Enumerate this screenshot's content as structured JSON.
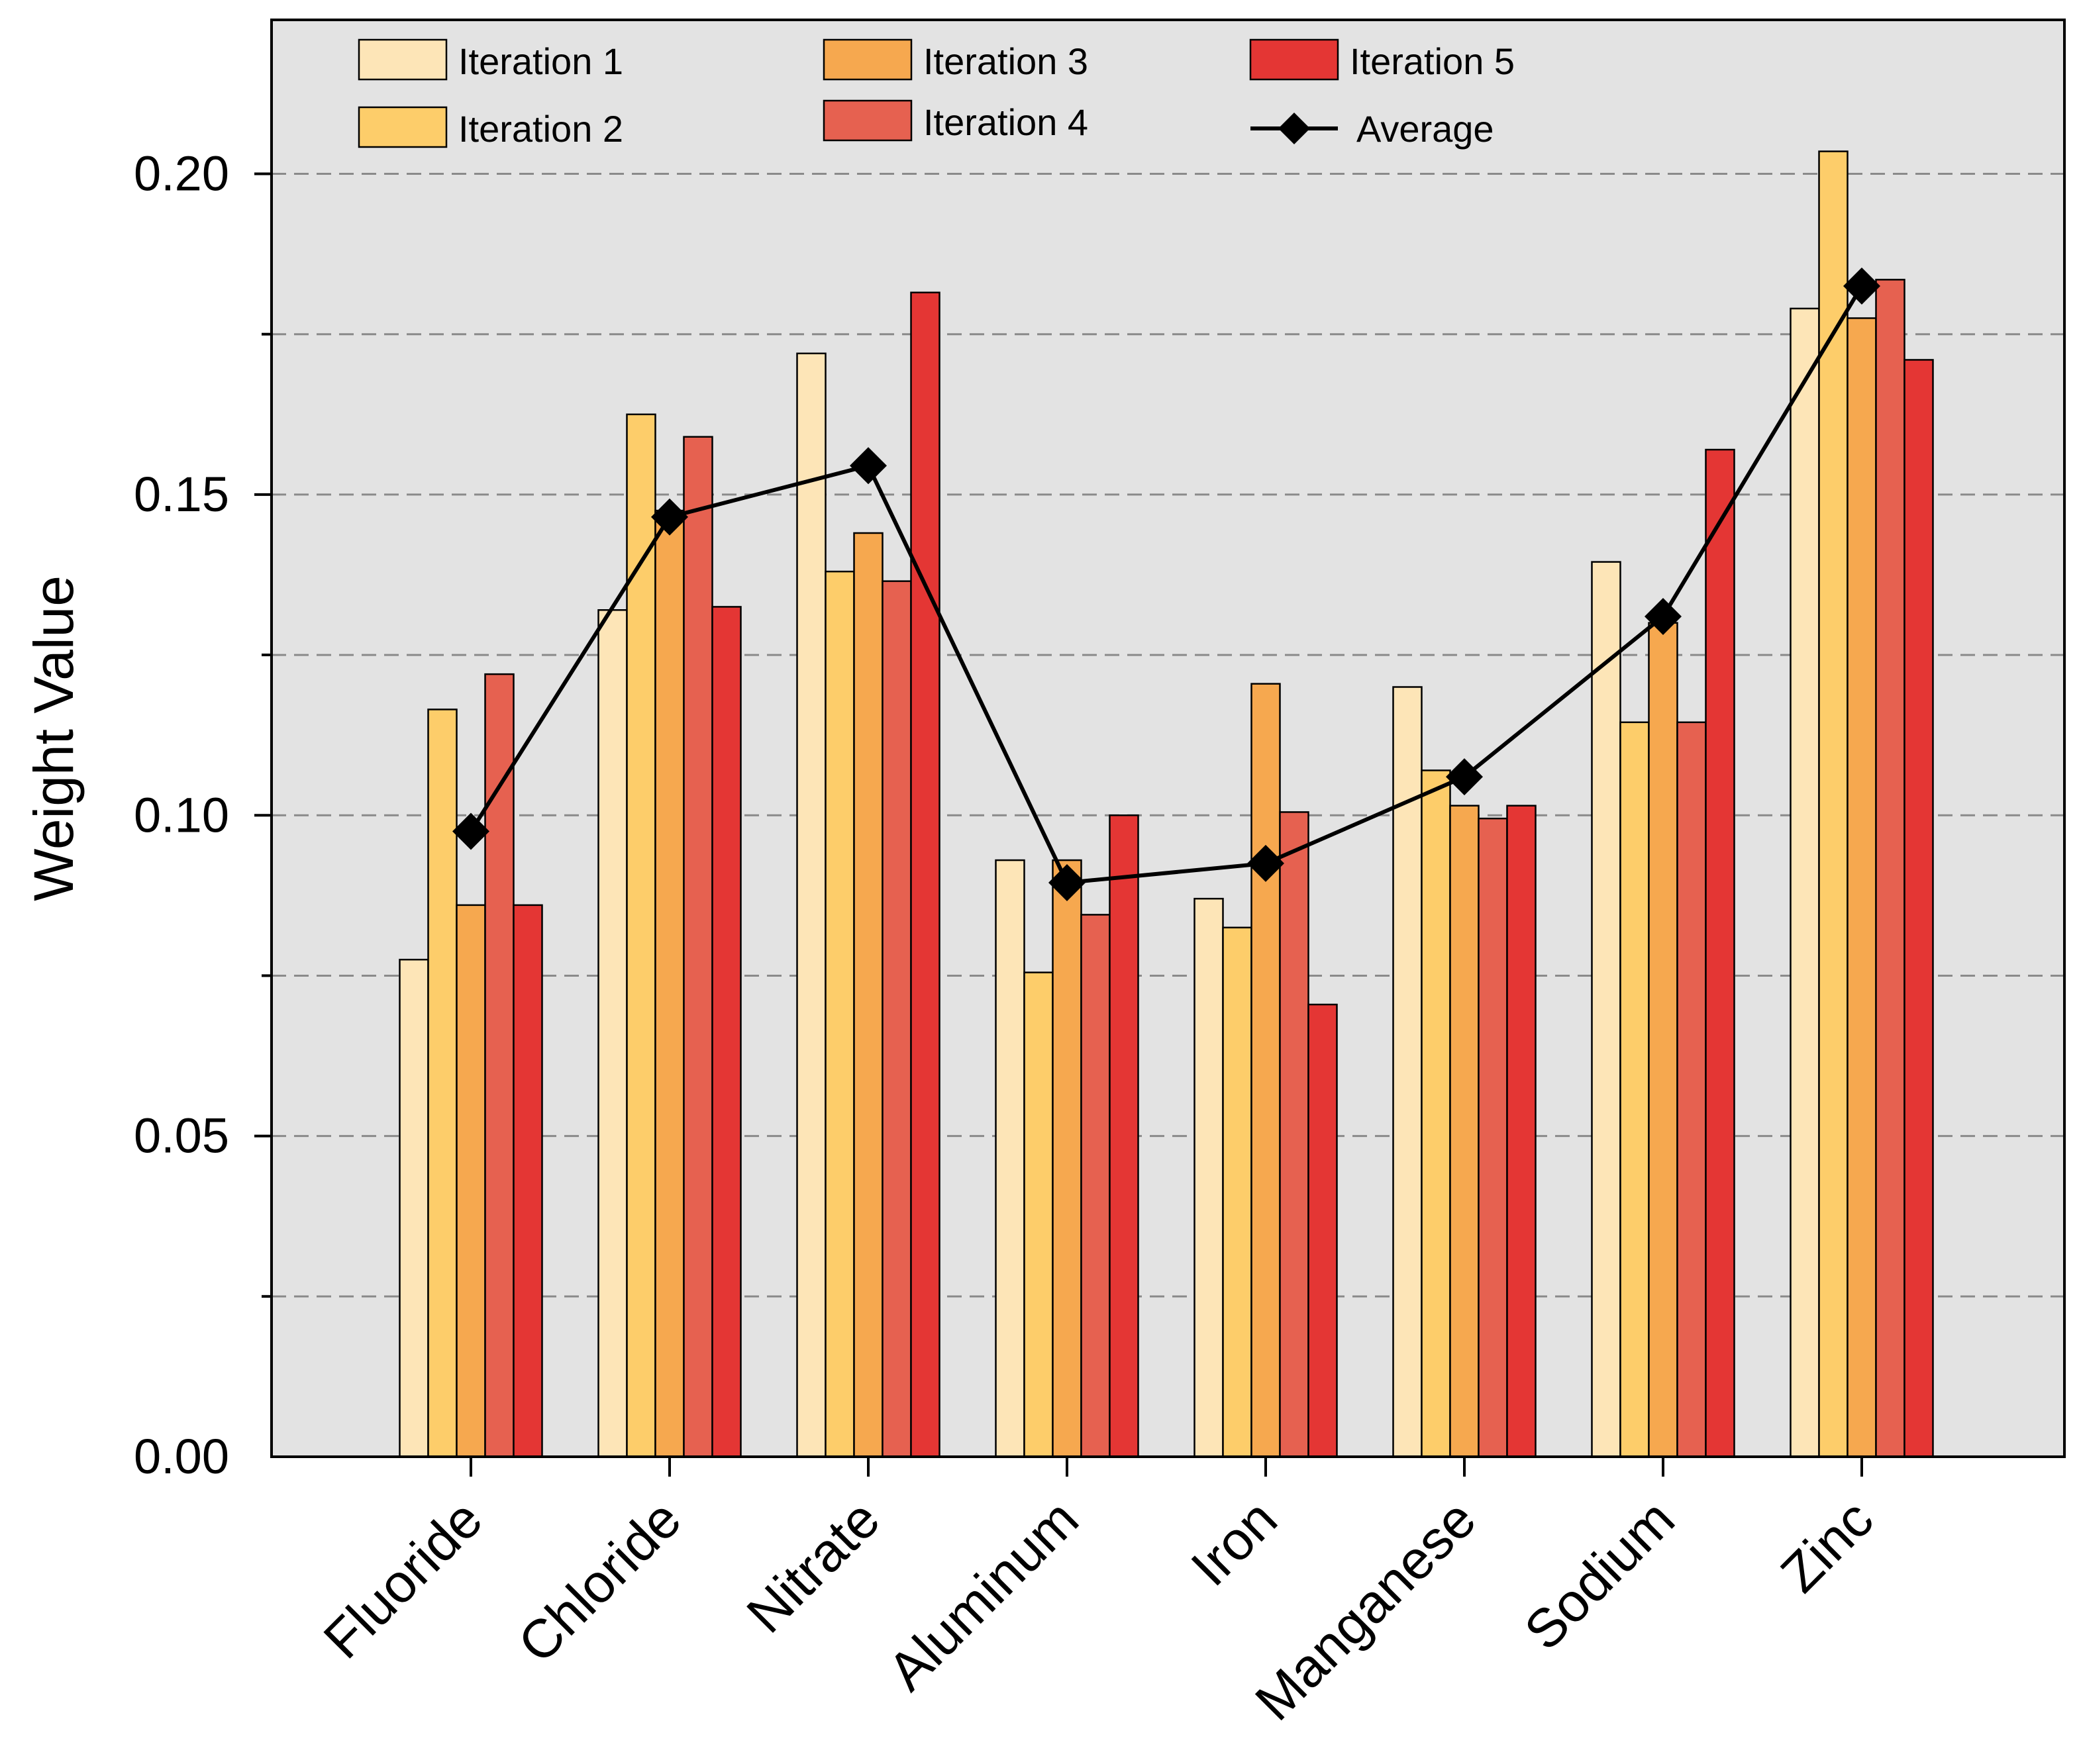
{
  "chart_data": {
    "type": "bar",
    "title": "",
    "xlabel": "",
    "ylabel": "Weight Value",
    "ylim": [
      0,
      0.224
    ],
    "yticks": [
      "0.00",
      "0.05",
      "0.10",
      "0.15",
      "0.20"
    ],
    "grid": "horizontal dashed",
    "legend_position": "top",
    "categories": [
      "Fluoride",
      "Chloride",
      "Nitrate",
      "Aluminum",
      "Iron",
      "Manganese",
      "Sodium",
      "Zinc"
    ],
    "series": [
      {
        "name": "Iteration 1",
        "color": "#FDE5B7",
        "values": [
          0.0775,
          0.132,
          0.172,
          0.093,
          0.087,
          0.12,
          0.1395,
          0.179
        ]
      },
      {
        "name": "Iteration 2",
        "color": "#FDCD6A",
        "values": [
          0.1165,
          0.1625,
          0.138,
          0.0755,
          0.0825,
          0.107,
          0.1145,
          0.2035
        ]
      },
      {
        "name": "Iteration 3",
        "color": "#F6A84F",
        "values": [
          0.086,
          0.1475,
          0.144,
          0.093,
          0.1205,
          0.1015,
          0.13,
          0.1775
        ]
      },
      {
        "name": "Iteration 4",
        "color": "#E66150",
        "values": [
          0.122,
          0.159,
          0.1365,
          0.0845,
          0.1005,
          0.0995,
          0.1145,
          0.1835
        ]
      },
      {
        "name": "Iteration 5",
        "color": "#E43634",
        "values": [
          0.086,
          0.1325,
          0.1815,
          0.1,
          0.0705,
          0.1015,
          0.157,
          0.171
        ]
      }
    ],
    "average": {
      "name": "Average",
      "color": "#000000",
      "values": [
        0.0975,
        0.1465,
        0.1545,
        0.0895,
        0.0925,
        0.106,
        0.131,
        0.1825
      ]
    }
  }
}
